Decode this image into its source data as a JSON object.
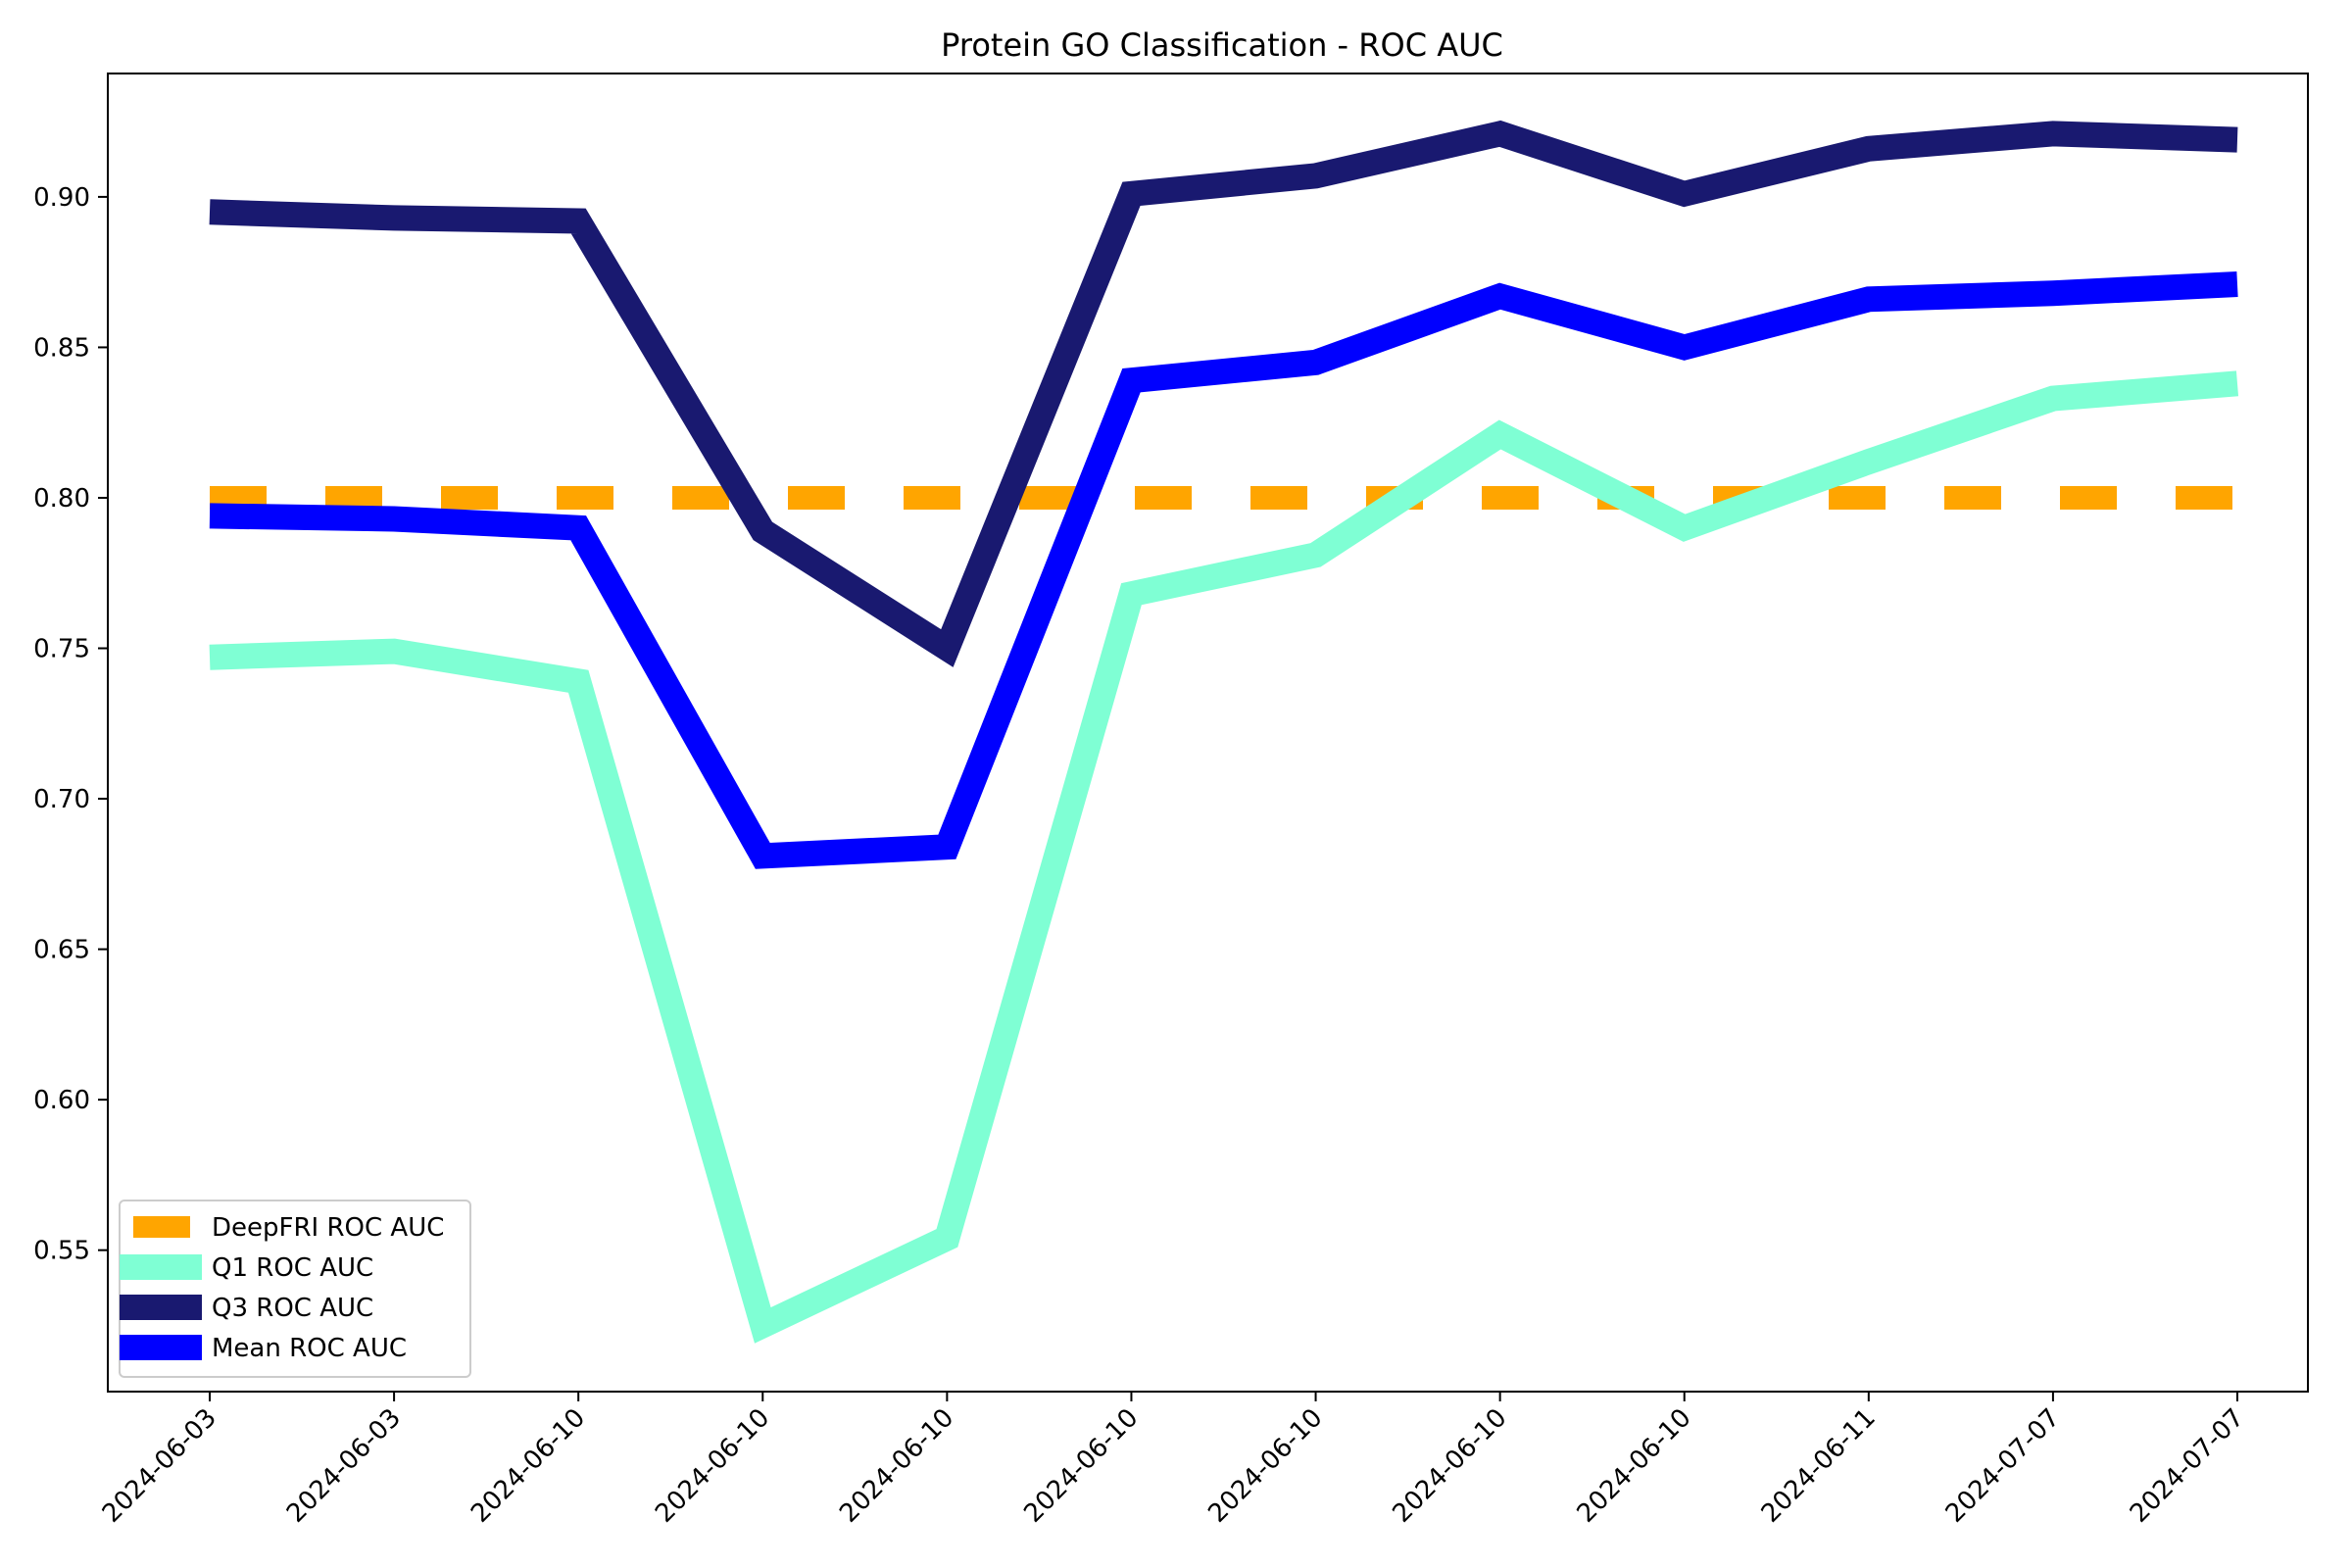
{
  "chart_data": {
    "type": "line",
    "title": "Protein GO Classification - ROC AUC",
    "xlabel": "",
    "ylabel": "",
    "categories": [
      "2024-06-03",
      "2024-06-03",
      "2024-06-10",
      "2024-06-10",
      "2024-06-10",
      "2024-06-10",
      "2024-06-10",
      "2024-06-10",
      "2024-06-10",
      "2024-06-11",
      "2024-07-07",
      "2024-07-07"
    ],
    "y_ticks": [
      0.55,
      0.6,
      0.65,
      0.7,
      0.75,
      0.8,
      0.85,
      0.9
    ],
    "ylim": [
      0.503,
      0.941
    ],
    "grid": false,
    "legend_placement": "lower-left",
    "series": [
      {
        "name": "DeepFRI ROC AUC",
        "color": "#FFA500",
        "style": "dashed",
        "values": [
          0.8,
          0.8,
          0.8,
          0.8,
          0.8,
          0.8,
          0.8,
          0.8,
          0.8,
          0.8,
          0.8,
          0.8
        ]
      },
      {
        "name": "Q1 ROC AUC",
        "color": "#7FFFD4",
        "style": "solid",
        "values": [
          0.747,
          0.749,
          0.739,
          0.525,
          0.554,
          0.768,
          0.781,
          0.821,
          0.79,
          0.812,
          0.833,
          0.838
        ]
      },
      {
        "name": "Q3 ROC AUC",
        "color": "#191970",
        "style": "solid",
        "values": [
          0.895,
          0.893,
          0.892,
          0.789,
          0.75,
          0.901,
          0.907,
          0.921,
          0.901,
          0.916,
          0.921,
          0.919
        ]
      },
      {
        "name": "Mean ROC AUC",
        "color": "#0000FF",
        "style": "solid",
        "values": [
          0.794,
          0.793,
          0.79,
          0.681,
          0.684,
          0.839,
          0.845,
          0.867,
          0.85,
          0.866,
          0.868,
          0.871
        ]
      }
    ]
  }
}
